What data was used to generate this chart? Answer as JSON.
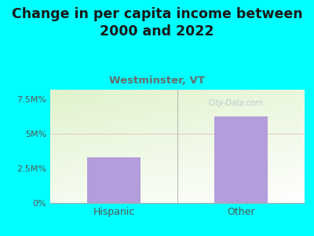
{
  "title": "Change in per capita income between\n2000 and 2022",
  "subtitle": "Westminster, VT",
  "categories": [
    "Hispanic",
    "Other"
  ],
  "values": [
    3.3,
    6.25
  ],
  "bar_color": "#b39ddb",
  "title_fontsize": 12.5,
  "subtitle_fontsize": 9.5,
  "subtitle_color": "#6b6b6b",
  "title_color": "#1a1a1a",
  "background_color": "#00ffff",
  "tick_color": "#555555",
  "yticks": [
    0,
    2.5,
    5.0,
    7.5
  ],
  "ytick_labels": [
    "0%",
    "2.5M%",
    "5M%",
    "7.5M%"
  ],
  "ylim": [
    0,
    8.2
  ],
  "grid_color": "#ddbbbb",
  "watermark": "City-Data.com"
}
